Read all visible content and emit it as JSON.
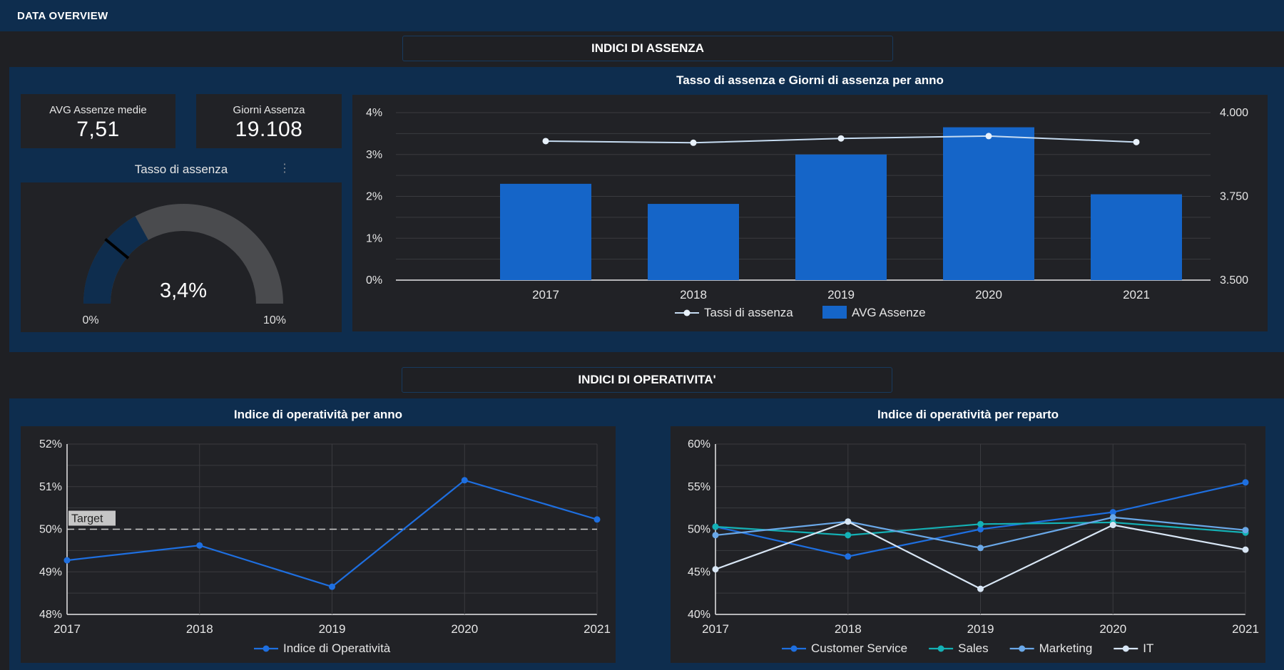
{
  "topbar": {
    "title": "DATA OVERVIEW"
  },
  "sections": {
    "assenza": "INDICI DI ASSENZA",
    "operativita": "INDICI DI OPERATIVITA'"
  },
  "kpis": {
    "avg_label": "AVG Assenze medie",
    "avg_value": "7,51",
    "giorni_label": "Giorni Assenza",
    "giorni_value": "19.108"
  },
  "gauge": {
    "title": "Tasso di assenza",
    "value_label": "3,4%",
    "value": 3.4,
    "min_label": "0%",
    "max_label": "10%",
    "min": 0,
    "max": 10,
    "target": 2.2,
    "fill_color": "#0e2d4e",
    "track_color": "#4a4b4e"
  },
  "chart_data": [
    {
      "id": "assenza_anno",
      "type": "bar",
      "title": "Tasso di assenza e Giorni di assenza per anno",
      "categories": [
        "2017",
        "2018",
        "2019",
        "2020",
        "2021"
      ],
      "series": [
        {
          "name": "AVG Assenze",
          "type": "bar",
          "axis": "left",
          "values": [
            2.3,
            1.82,
            3.0,
            3.65,
            2.05
          ],
          "color": "#1565c8"
        },
        {
          "name": "Tassi di assenza",
          "type": "line",
          "axis": "right",
          "values": [
            3915,
            3910,
            3923,
            3930,
            3912
          ],
          "color": "#c6dcf2"
        }
      ],
      "y_left": {
        "ticks": [
          "0%",
          "1%",
          "2%",
          "3%",
          "4%"
        ],
        "range": [
          0,
          4
        ]
      },
      "y_right": {
        "ticks": [
          "3.500",
          "3.750",
          "4.000"
        ],
        "range": [
          3500,
          4000
        ]
      },
      "legend": "bottom"
    },
    {
      "id": "operativita_anno",
      "type": "line",
      "title": "Indice di operatività per anno",
      "categories": [
        "2017",
        "2018",
        "2019",
        "2020",
        "2021"
      ],
      "series": [
        {
          "name": "Indice di Operatività",
          "values": [
            49.27,
            49.62,
            48.65,
            51.15,
            50.23
          ],
          "color": "#1e6fe0"
        }
      ],
      "y": {
        "ticks": [
          "48%",
          "49%",
          "50%",
          "51%",
          "52%"
        ],
        "range": [
          48,
          52
        ]
      },
      "reference_line": {
        "label": "Target",
        "value": 50
      },
      "legend": "bottom"
    },
    {
      "id": "operativita_reparto",
      "type": "line",
      "title": "Indice di operatività per reparto",
      "categories": [
        "2017",
        "2018",
        "2019",
        "2020",
        "2021"
      ],
      "series": [
        {
          "name": "Customer Service",
          "values": [
            50.3,
            46.8,
            50.0,
            52.0,
            55.5
          ],
          "color": "#1e6fe0"
        },
        {
          "name": "Sales",
          "values": [
            50.3,
            49.3,
            50.6,
            50.8,
            49.6
          ],
          "color": "#14b1b5"
        },
        {
          "name": "Marketing",
          "values": [
            49.3,
            50.9,
            47.8,
            51.4,
            49.9
          ],
          "color": "#6aa8e8"
        },
        {
          "name": "IT",
          "values": [
            45.3,
            50.9,
            43.0,
            50.5,
            47.6
          ],
          "color": "#d8e6f5"
        }
      ],
      "y": {
        "ticks": [
          "40%",
          "45%",
          "50%",
          "55%",
          "60%"
        ],
        "range": [
          40,
          60
        ]
      },
      "legend": "bottom"
    }
  ]
}
